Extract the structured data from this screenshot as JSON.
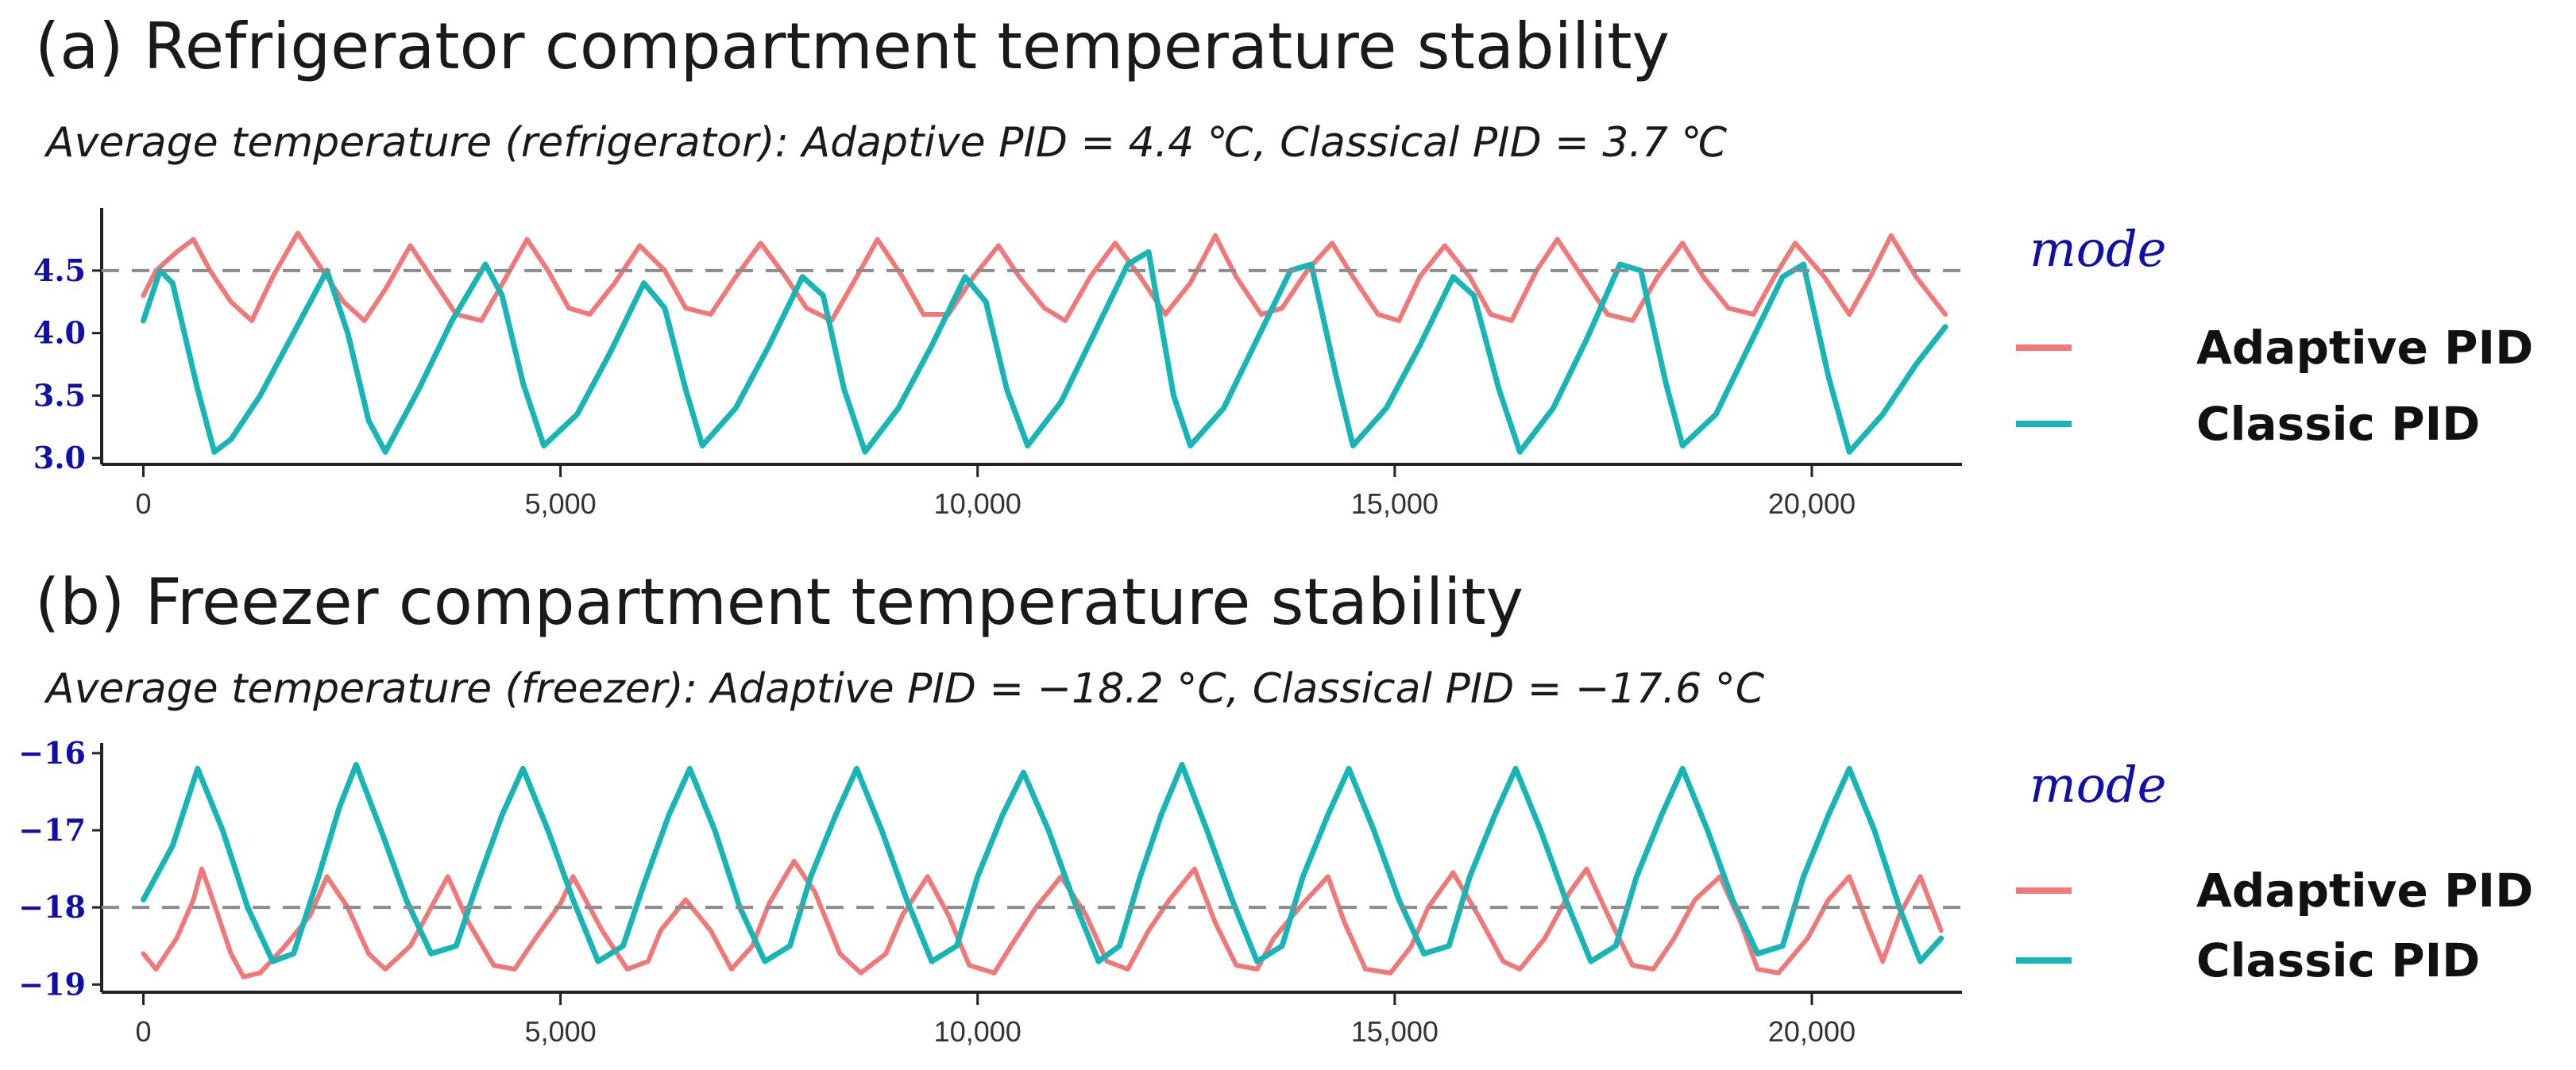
{
  "chart_data": [
    {
      "type": "line",
      "title": "(a) Refrigerator compartment temperature stability",
      "subtitle": "Average temperature (refrigerator): Adaptive PID = 4.4 ℃, Classical PID = 3.7 ℃",
      "xlim": [
        -500,
        21800
      ],
      "ylim": [
        2.95,
        4.95
      ],
      "x_ticks": [
        0,
        5000,
        10000,
        15000,
        20000
      ],
      "x_tick_labels": [
        "0",
        "5,000",
        "10,000",
        "15,000",
        "20,000"
      ],
      "y_ticks": [
        3.0,
        3.5,
        4.0,
        4.5
      ],
      "y_tick_labels": [
        "3.0",
        "3.5",
        "4.0",
        "4.5"
      ],
      "reference_line": 4.5,
      "legend_title": "mode",
      "series": [
        {
          "name": "Adaptive PID",
          "color": "#f07878",
          "x": [
            0,
            150,
            400,
            600,
            800,
            1050,
            1300,
            1550,
            1850,
            2100,
            2400,
            2650,
            2900,
            3200,
            3450,
            3750,
            4050,
            4350,
            4600,
            4850,
            5100,
            5350,
            5650,
            5950,
            6250,
            6500,
            6800,
            7100,
            7400,
            7700,
            7950,
            8250,
            8550,
            8800,
            9100,
            9350,
            9650,
            9950,
            10250,
            10500,
            10800,
            11050,
            11350,
            11650,
            11950,
            12250,
            12550,
            12850,
            13100,
            13400,
            13650,
            13950,
            14250,
            14500,
            14800,
            15050,
            15300,
            15600,
            15900,
            16150,
            16400,
            16700,
            16950,
            17250,
            17550,
            17850,
            18150,
            18450,
            18700,
            19000,
            19300,
            19550,
            19800,
            20150,
            20450,
            20700,
            20950,
            21250,
            21600
          ],
          "y": [
            4.3,
            4.5,
            4.65,
            4.75,
            4.5,
            4.25,
            4.1,
            4.45,
            4.8,
            4.55,
            4.25,
            4.1,
            4.35,
            4.7,
            4.45,
            4.15,
            4.1,
            4.45,
            4.75,
            4.5,
            4.2,
            4.15,
            4.4,
            4.7,
            4.5,
            4.2,
            4.15,
            4.45,
            4.72,
            4.45,
            4.2,
            4.1,
            4.45,
            4.75,
            4.45,
            4.15,
            4.15,
            4.45,
            4.7,
            4.45,
            4.2,
            4.1,
            4.45,
            4.72,
            4.45,
            4.15,
            4.4,
            4.78,
            4.45,
            4.15,
            4.2,
            4.5,
            4.72,
            4.45,
            4.15,
            4.1,
            4.45,
            4.7,
            4.45,
            4.15,
            4.1,
            4.5,
            4.75,
            4.45,
            4.15,
            4.1,
            4.45,
            4.72,
            4.45,
            4.2,
            4.15,
            4.45,
            4.72,
            4.45,
            4.15,
            4.45,
            4.78,
            4.45,
            4.15
          ]
        },
        {
          "name": "Classic PID",
          "color": "#17b5b5",
          "x": [
            0,
            200,
            350,
            650,
            850,
            1050,
            1400,
            1800,
            2200,
            2450,
            2700,
            2900,
            3300,
            3700,
            4100,
            4300,
            4550,
            4800,
            5200,
            5600,
            6000,
            6250,
            6500,
            6700,
            7100,
            7500,
            7900,
            8150,
            8400,
            8650,
            9050,
            9450,
            9850,
            10100,
            10350,
            10600,
            11000,
            11400,
            11800,
            12050,
            12350,
            12550,
            12950,
            13350,
            13750,
            14000,
            14300,
            14500,
            14900,
            15300,
            15700,
            15950,
            16250,
            16500,
            16900,
            17300,
            17700,
            17950,
            18250,
            18450,
            18850,
            19250,
            19650,
            19900,
            20200,
            20450,
            20850,
            21250,
            21600
          ],
          "y": [
            4.1,
            4.5,
            4.4,
            3.55,
            3.05,
            3.15,
            3.5,
            4.0,
            4.5,
            4.0,
            3.3,
            3.05,
            3.55,
            4.1,
            4.55,
            4.3,
            3.6,
            3.1,
            3.35,
            3.85,
            4.4,
            4.2,
            3.55,
            3.1,
            3.4,
            3.9,
            4.45,
            4.3,
            3.55,
            3.05,
            3.4,
            3.9,
            4.45,
            4.25,
            3.55,
            3.1,
            3.45,
            4.0,
            4.55,
            4.65,
            3.5,
            3.1,
            3.4,
            3.95,
            4.5,
            4.55,
            3.65,
            3.1,
            3.4,
            3.9,
            4.45,
            4.3,
            3.55,
            3.05,
            3.4,
            3.95,
            4.55,
            4.5,
            3.6,
            3.1,
            3.35,
            3.9,
            4.45,
            4.55,
            3.65,
            3.05,
            3.35,
            3.75,
            4.05
          ]
        }
      ]
    },
    {
      "type": "line",
      "title": "(b) Freezer compartment temperature stability",
      "subtitle": "Average temperature (freezer): Adaptive PID = −18.2 °C, Classical PID = −17.6 °C",
      "xlim": [
        -500,
        21800
      ],
      "ylim": [
        -19.1,
        -15.95
      ],
      "x_ticks": [
        0,
        5000,
        10000,
        15000,
        20000
      ],
      "x_tick_labels": [
        "0",
        "5,000",
        "10,000",
        "15,000",
        "20,000"
      ],
      "y_ticks": [
        -19,
        -18,
        -17,
        -16
      ],
      "y_tick_labels": [
        "−19",
        "−18",
        "−17",
        "−16"
      ],
      "reference_line": -18,
      "legend_title": "mode",
      "series": [
        {
          "name": "Adaptive PID",
          "color": "#f07878",
          "x": [
            0,
            150,
            400,
            600,
            700,
            800,
            1050,
            1200,
            1400,
            1700,
            2000,
            2200,
            2450,
            2700,
            2900,
            3200,
            3450,
            3650,
            3900,
            4200,
            4450,
            4700,
            5000,
            5150,
            5500,
            5800,
            6050,
            6200,
            6500,
            6800,
            7050,
            7300,
            7500,
            7800,
            8050,
            8350,
            8600,
            8900,
            9100,
            9400,
            9650,
            9900,
            10200,
            10400,
            10700,
            11000,
            11300,
            11550,
            11800,
            12050,
            12300,
            12600,
            12850,
            13100,
            13350,
            13550,
            13900,
            14200,
            14400,
            14650,
            14950,
            15200,
            15400,
            15700,
            16000,
            16300,
            16500,
            16800,
            17100,
            17300,
            17600,
            17850,
            18100,
            18350,
            18600,
            18900,
            19150,
            19350,
            19600,
            19950,
            20200,
            20450,
            20700,
            20850,
            21050,
            21300,
            21550
          ],
          "y": [
            -18.6,
            -18.8,
            -18.4,
            -17.9,
            -17.5,
            -17.8,
            -18.6,
            -18.9,
            -18.85,
            -18.5,
            -18.1,
            -17.6,
            -18.0,
            -18.6,
            -18.8,
            -18.5,
            -18.0,
            -17.6,
            -18.2,
            -18.75,
            -18.8,
            -18.4,
            -17.95,
            -17.6,
            -18.3,
            -18.8,
            -18.7,
            -18.3,
            -17.9,
            -18.3,
            -18.8,
            -18.5,
            -17.95,
            -17.4,
            -17.8,
            -18.6,
            -18.85,
            -18.6,
            -18.1,
            -17.6,
            -18.1,
            -18.75,
            -18.85,
            -18.5,
            -18.0,
            -17.6,
            -18.1,
            -18.7,
            -18.8,
            -18.3,
            -17.9,
            -17.5,
            -18.2,
            -18.75,
            -18.8,
            -18.4,
            -17.95,
            -17.6,
            -18.2,
            -18.8,
            -18.85,
            -18.5,
            -18.0,
            -17.55,
            -18.1,
            -18.7,
            -18.8,
            -18.4,
            -17.8,
            -17.5,
            -18.2,
            -18.75,
            -18.8,
            -18.4,
            -17.9,
            -17.6,
            -18.2,
            -18.8,
            -18.85,
            -18.4,
            -17.9,
            -17.6,
            -18.3,
            -18.7,
            -18.1,
            -17.6,
            -18.3
          ]
        },
        {
          "name": "Classic PID",
          "color": "#17b5b5",
          "x": [
            0,
            350,
            650,
            950,
            1250,
            1550,
            1800,
            2100,
            2350,
            2550,
            2850,
            3150,
            3450,
            3750,
            4000,
            4300,
            4550,
            4850,
            5150,
            5450,
            5750,
            6000,
            6300,
            6550,
            6850,
            7150,
            7450,
            7750,
            8000,
            8300,
            8550,
            8850,
            9150,
            9450,
            9750,
            10000,
            10300,
            10550,
            10850,
            11150,
            11450,
            11700,
            11950,
            12200,
            12450,
            12750,
            13050,
            13350,
            13650,
            13900,
            14200,
            14450,
            14750,
            15050,
            15350,
            15650,
            15900,
            16200,
            16450,
            16750,
            17050,
            17350,
            17650,
            17900,
            18200,
            18450,
            18750,
            19050,
            19350,
            19650,
            19900,
            20200,
            20450,
            20750,
            21050,
            21300,
            21550
          ],
          "y": [
            -17.9,
            -17.2,
            -16.2,
            -17.0,
            -18.0,
            -18.7,
            -18.6,
            -17.6,
            -16.7,
            -16.15,
            -17.0,
            -17.9,
            -18.6,
            -18.5,
            -17.7,
            -16.8,
            -16.2,
            -17.0,
            -17.9,
            -18.7,
            -18.5,
            -17.7,
            -16.8,
            -16.2,
            -17.0,
            -18.0,
            -18.7,
            -18.5,
            -17.6,
            -16.8,
            -16.2,
            -17.0,
            -17.9,
            -18.7,
            -18.5,
            -17.6,
            -16.8,
            -16.25,
            -17.0,
            -17.9,
            -18.7,
            -18.5,
            -17.6,
            -16.8,
            -16.15,
            -17.0,
            -17.9,
            -18.7,
            -18.5,
            -17.6,
            -16.8,
            -16.2,
            -17.0,
            -17.9,
            -18.6,
            -18.5,
            -17.6,
            -16.8,
            -16.2,
            -17.0,
            -17.9,
            -18.7,
            -18.5,
            -17.6,
            -16.8,
            -16.2,
            -17.0,
            -17.9,
            -18.6,
            -18.5,
            -17.6,
            -16.8,
            -16.2,
            -17.0,
            -18.0,
            -18.7,
            -18.4
          ]
        }
      ]
    }
  ]
}
